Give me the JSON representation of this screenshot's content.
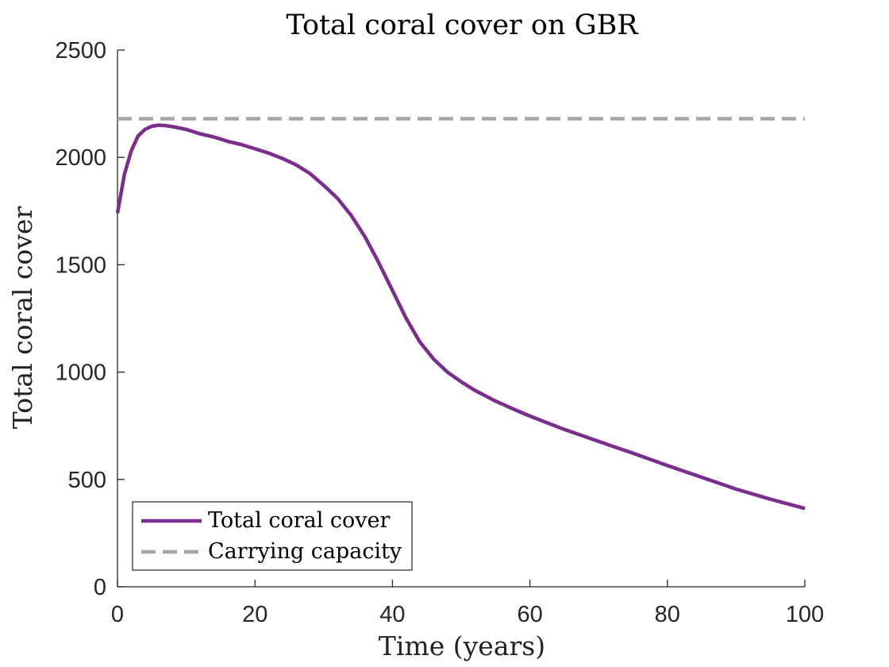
{
  "chart_data": {
    "type": "line",
    "title": "Total coral cover on GBR",
    "xlabel": "Time (years)",
    "ylabel": "Total coral cover",
    "xlim": [
      0,
      100
    ],
    "ylim": [
      0,
      2500
    ],
    "xticks": [
      0,
      20,
      40,
      60,
      80,
      100
    ],
    "yticks": [
      0,
      500,
      1000,
      1500,
      2000,
      2500
    ],
    "grid": false,
    "legend_position": "bottom-left",
    "series": [
      {
        "name": "Total coral cover",
        "color": "#7B2D8E",
        "style": "solid",
        "x": [
          0,
          1,
          2,
          3,
          4,
          5,
          6,
          7,
          8,
          10,
          12,
          14,
          16,
          18,
          20,
          22,
          24,
          26,
          28,
          30,
          32,
          34,
          36,
          38,
          40,
          42,
          44,
          46,
          48,
          50,
          52,
          55,
          58,
          60,
          65,
          70,
          75,
          80,
          85,
          90,
          95,
          100
        ],
        "y": [
          1740,
          1920,
          2030,
          2100,
          2130,
          2145,
          2150,
          2148,
          2143,
          2130,
          2110,
          2095,
          2075,
          2060,
          2040,
          2020,
          1995,
          1965,
          1925,
          1870,
          1810,
          1730,
          1630,
          1510,
          1380,
          1250,
          1140,
          1060,
          1000,
          955,
          915,
          865,
          822,
          795,
          733,
          677,
          622,
          565,
          510,
          455,
          408,
          365
        ]
      },
      {
        "name": "Carrying capacity",
        "color": "#A6A6A6",
        "style": "dashed",
        "x": [
          0,
          100
        ],
        "y": [
          2180,
          2180
        ]
      }
    ]
  }
}
